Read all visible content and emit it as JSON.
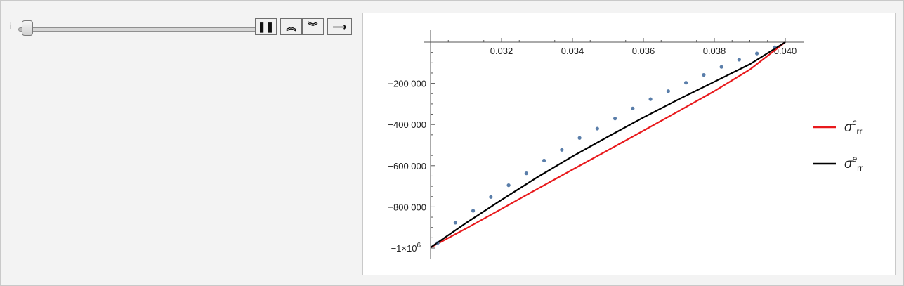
{
  "controls": {
    "variable_label": "i",
    "slider_value": 0,
    "pause_glyph": "❚❚",
    "faster_glyph": "︽",
    "slower_glyph": "︾",
    "direction_glyph": "⟶"
  },
  "icons": {
    "pause": "pause-icon",
    "faster": "double-chevron-up-icon",
    "slower": "double-chevron-down-icon",
    "direction": "arrow-right-icon"
  },
  "colors": {
    "computed": "#e8191c",
    "exact": "#000000",
    "points": "#5a7eaa"
  },
  "chart_data": {
    "type": "line",
    "title": "",
    "xlabel": "",
    "ylabel": "",
    "xlim": [
      0.03,
      0.04
    ],
    "ylim": [
      -1000000,
      0
    ],
    "x_ticks": [
      {
        "value": 0.032,
        "label": "0.032"
      },
      {
        "value": 0.034,
        "label": "0.034"
      },
      {
        "value": 0.036,
        "label": "0.036"
      },
      {
        "value": 0.038,
        "label": "0.038"
      },
      {
        "value": 0.04,
        "label": "0.040"
      }
    ],
    "y_ticks": [
      {
        "value": -200000,
        "label": "−200 000"
      },
      {
        "value": -400000,
        "label": "−400 000"
      },
      {
        "value": -600000,
        "label": "−600 000"
      },
      {
        "value": -800000,
        "label": "−800 000"
      },
      {
        "value": -1000000,
        "label": "−1×10",
        "sup": "6"
      }
    ],
    "legend_position": "right",
    "series": [
      {
        "name": "σ^c_rr",
        "legend": {
          "sym": "σ",
          "sup": "c",
          "sub": "rr"
        },
        "color": "#e8191c",
        "x": [
          0.03,
          0.031,
          0.032,
          0.033,
          0.034,
          0.035,
          0.036,
          0.037,
          0.038,
          0.039,
          0.04
        ],
        "y": [
          -997000,
          -905000,
          -810000,
          -714000,
          -619000,
          -525000,
          -430000,
          -334000,
          -238000,
          -133000,
          0
        ]
      },
      {
        "name": "σ^e_rr",
        "legend": {
          "sym": "σ",
          "sup": "e",
          "sub": "rr"
        },
        "color": "#000000",
        "x": [
          0.03,
          0.031,
          0.032,
          0.033,
          0.034,
          0.035,
          0.036,
          0.037,
          0.038,
          0.039,
          0.04
        ],
        "y": [
          -997000,
          -878000,
          -766000,
          -657000,
          -555000,
          -459000,
          -366000,
          -277000,
          -192000,
          -107000,
          0
        ]
      },
      {
        "name": "points",
        "color": "#5a7eaa",
        "marker": "point",
        "x": [
          0.0302,
          0.0307,
          0.0312,
          0.0317,
          0.0322,
          0.0327,
          0.0332,
          0.0337,
          0.0342,
          0.0347,
          0.0352,
          0.0357,
          0.0362,
          0.0367,
          0.0372,
          0.0377,
          0.0382,
          0.0387,
          0.0392,
          0.0397
        ],
        "y": [
          -975000,
          -877000,
          -819000,
          -752000,
          -695000,
          -637000,
          -575000,
          -523000,
          -465000,
          -420000,
          -371000,
          -322000,
          -277000,
          -238000,
          -197000,
          -159000,
          -120000,
          -85000,
          -55000,
          -25000
        ]
      }
    ]
  }
}
